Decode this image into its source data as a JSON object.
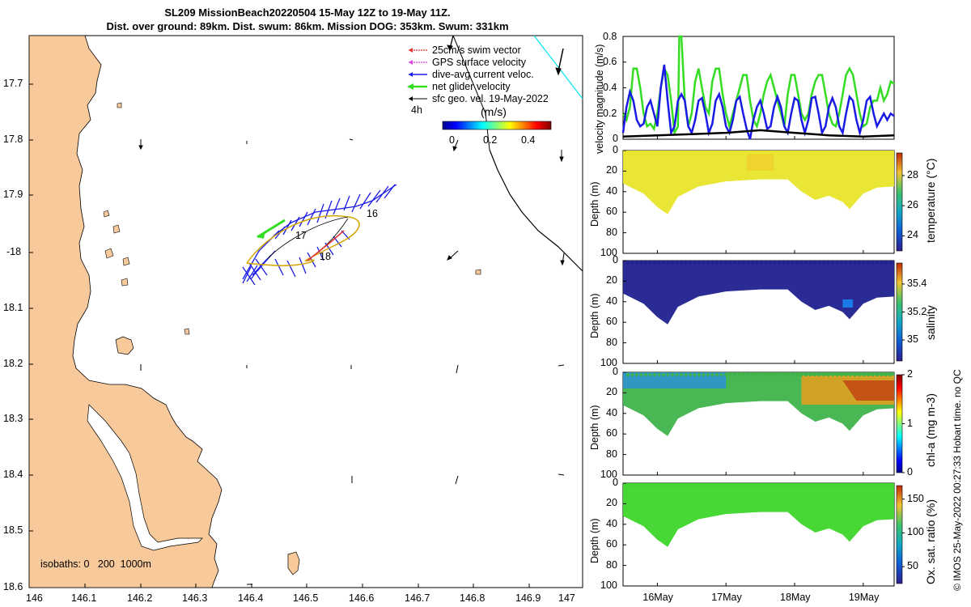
{
  "title": {
    "line1": "SL209 MissionBeach20220504 15-May 12Z to 19-May 11Z.",
    "line2": "Dist. over ground: 89km. Dist. swum: 86km. Mission DOG: 353km. Swum: 331km"
  },
  "map": {
    "lon_ticks": [
      "146",
      "146.1",
      "146.2",
      "146.3",
      "146.4",
      "146.5",
      "146.6",
      "146.7",
      "146.8",
      "146.9",
      "147"
    ],
    "lat_ticks": [
      "17.7",
      "17.8",
      "17.9",
      "-18",
      "18.1",
      "18.2",
      "18.3",
      "18.4",
      "18.5",
      "18.6"
    ],
    "legend": [
      {
        "label": "25cm/s swim vector",
        "color": "#e03030"
      },
      {
        "label": "GPS surface velocity",
        "color": "#e040e0"
      },
      {
        "label": "dive-avg current veloc.",
        "color": "#1a1ae6"
      },
      {
        "label": "net glider velocity",
        "color": "#33dd22"
      },
      {
        "label": "sfc geo. vel. 19-May-2022",
        "color": "#000000"
      }
    ],
    "interval_label": "4h",
    "colorbar_title": "(m/s)",
    "colorbar_ticks": [
      "0",
      "0.2",
      "0.4"
    ],
    "day_labels": [
      "16",
      "17",
      "18"
    ],
    "isobaths_label": "isobaths: 0   200  1000m",
    "land_color": "#f8c99a"
  },
  "chart_data": [
    {
      "type": "line",
      "title": "",
      "ylabel": "velocity magnitude (m/s)",
      "ylim": [
        0,
        0.8
      ],
      "yticks": [
        "0",
        "0.2",
        "0.4",
        "0.6",
        "0.8"
      ],
      "x_days": [
        15.5,
        19.45
      ],
      "series": [
        {
          "name": "net glider velocity",
          "color": "#33dd22",
          "x": [
            15.5,
            15.55,
            15.6,
            15.65,
            15.7,
            15.75,
            15.8,
            15.85,
            15.9,
            15.95,
            16.0,
            16.05,
            16.1,
            16.15,
            16.2,
            16.25,
            16.3,
            16.32,
            16.35,
            16.4,
            16.45,
            16.5,
            16.55,
            16.6,
            16.65,
            16.7,
            16.75,
            16.8,
            16.85,
            16.9,
            16.95,
            17.0,
            17.05,
            17.1,
            17.15,
            17.2,
            17.25,
            17.3,
            17.35,
            17.4,
            17.45,
            17.5,
            17.55,
            17.6,
            17.65,
            17.7,
            17.75,
            17.8,
            17.85,
            17.9,
            17.95,
            18.0,
            18.05,
            18.1,
            18.15,
            18.2,
            18.25,
            18.3,
            18.35,
            18.4,
            18.45,
            18.5,
            18.55,
            18.6,
            18.65,
            18.7,
            18.75,
            18.8,
            18.85,
            18.9,
            18.95,
            19.0,
            19.05,
            19.1,
            19.15,
            19.2,
            19.25,
            19.3,
            19.35,
            19.4,
            19.45
          ],
          "y": [
            0.2,
            0.15,
            0.25,
            0.55,
            0.55,
            0.4,
            0.2,
            0.1,
            0.12,
            0.08,
            0.2,
            0.4,
            0.55,
            0.5,
            0.3,
            0.05,
            0.1,
            0.8,
            0.8,
            0.3,
            0.1,
            0.2,
            0.45,
            0.55,
            0.4,
            0.25,
            0.2,
            0.45,
            0.55,
            0.55,
            0.35,
            0.2,
            0.1,
            0.2,
            0.3,
            0.4,
            0.5,
            0.5,
            0.3,
            0.15,
            0.1,
            0.2,
            0.35,
            0.45,
            0.5,
            0.4,
            0.3,
            0.2,
            0.1,
            0.35,
            0.5,
            0.5,
            0.35,
            0.2,
            0.15,
            0.2,
            0.35,
            0.45,
            0.5,
            0.5,
            0.35,
            0.2,
            0.12,
            0.1,
            0.2,
            0.35,
            0.5,
            0.55,
            0.5,
            0.35,
            0.2,
            0.1,
            0.12,
            0.25,
            0.3,
            0.3,
            0.4,
            0.3,
            0.35,
            0.45,
            0.43
          ]
        },
        {
          "name": "dive-avg current veloc.",
          "color": "#1a1ae6",
          "x": [
            15.5,
            15.55,
            15.6,
            15.65,
            15.7,
            15.75,
            15.8,
            15.85,
            15.9,
            15.95,
            16.0,
            16.05,
            16.1,
            16.15,
            16.2,
            16.25,
            16.3,
            16.35,
            16.4,
            16.45,
            16.5,
            16.55,
            16.6,
            16.65,
            16.7,
            16.75,
            16.8,
            16.85,
            16.9,
            16.95,
            17.0,
            17.05,
            17.1,
            17.15,
            17.2,
            17.25,
            17.3,
            17.35,
            17.4,
            17.45,
            17.5,
            17.55,
            17.6,
            17.65,
            17.7,
            17.75,
            17.8,
            17.85,
            17.9,
            17.95,
            18.0,
            18.05,
            18.1,
            18.15,
            18.2,
            18.25,
            18.3,
            18.35,
            18.4,
            18.45,
            18.5,
            18.55,
            18.6,
            18.65,
            18.7,
            18.75,
            18.8,
            18.85,
            18.9,
            18.95,
            19.0,
            19.05,
            19.1,
            19.15,
            19.2,
            19.25,
            19.3,
            19.35,
            19.4,
            19.45
          ],
          "y": [
            0.05,
            0.25,
            0.37,
            0.3,
            0.15,
            0.1,
            0.12,
            0.25,
            0.3,
            0.2,
            0.1,
            0.4,
            0.58,
            0.3,
            0.05,
            0.1,
            0.3,
            0.35,
            0.3,
            0.1,
            0.05,
            0.15,
            0.3,
            0.32,
            0.2,
            0.05,
            0.12,
            0.3,
            0.35,
            0.25,
            0.1,
            0.05,
            0.15,
            0.3,
            0.33,
            0.2,
            0.08,
            0.0,
            0.15,
            0.25,
            0.3,
            0.2,
            0.08,
            0.1,
            0.25,
            0.33,
            0.25,
            0.1,
            0.05,
            0.2,
            0.32,
            0.3,
            0.15,
            0.05,
            0.15,
            0.32,
            0.33,
            0.2,
            0.05,
            0.1,
            0.25,
            0.32,
            0.25,
            0.1,
            0.05,
            0.2,
            0.33,
            0.3,
            0.15,
            0.05,
            0.15,
            0.3,
            0.33,
            0.2,
            0.1,
            0.15,
            0.2,
            0.15,
            0.2,
            0.18
          ]
        },
        {
          "name": "sfc geo. vel.",
          "color": "#000000",
          "x": [
            15.5,
            16.0,
            16.5,
            17.0,
            17.5,
            18.0,
            18.5,
            19.0,
            19.45
          ],
          "y": [
            0.02,
            0.03,
            0.04,
            0.05,
            0.07,
            0.05,
            0.03,
            0.02,
            0.03
          ]
        }
      ]
    },
    {
      "type": "heatmap",
      "ylabel": "Depth (m)",
      "colorbar_label": "temperature (°C)",
      "yticks": [
        "0",
        "20",
        "40",
        "60",
        "80",
        "100"
      ],
      "cbar_ticks": [
        "24",
        "26",
        "28"
      ],
      "cbar_range": [
        23,
        29.5
      ],
      "value": 27.2
    },
    {
      "type": "heatmap",
      "ylabel": "Depth (m)",
      "colorbar_label": "salinity",
      "yticks": [
        "0",
        "20",
        "40",
        "60",
        "80",
        "100"
      ],
      "cbar_ticks": [
        "35",
        "35.2",
        "35.4"
      ],
      "cbar_range": [
        34.85,
        35.55
      ],
      "value": 34.88
    },
    {
      "type": "heatmap",
      "ylabel": "Depth (m)",
      "colorbar_label": "chl-a (mg m-3)",
      "yticks": [
        "0",
        "20",
        "40",
        "60",
        "80",
        "100"
      ],
      "cbar_ticks": [
        "0",
        "1",
        "2"
      ],
      "cbar_range": [
        0,
        2
      ],
      "value": 0.9
    },
    {
      "type": "heatmap",
      "ylabel": "Depth (m)",
      "colorbar_label": "Ox. sat. ratio (%)",
      "yticks": [
        "0",
        "20",
        "40",
        "60",
        "80",
        "100"
      ],
      "cbar_ticks": [
        "50",
        "100",
        "150"
      ],
      "cbar_range": [
        25,
        170
      ],
      "value": 110,
      "xticks": [
        "16May",
        "17May",
        "18May",
        "19May"
      ]
    }
  ],
  "footer": "© IMOS 25-May-2022 00:27:33 Hobart time. no QC"
}
